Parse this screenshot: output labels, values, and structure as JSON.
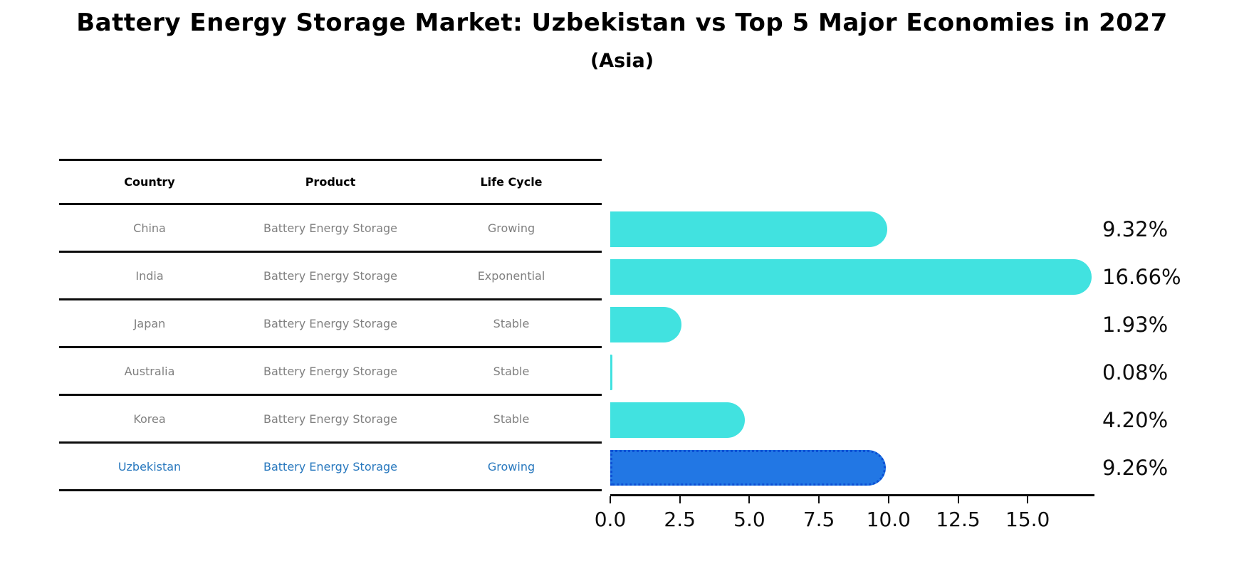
{
  "title": "Battery Energy Storage Market: Uzbekistan vs Top 5 Major Economies in 2027",
  "subtitle": "(Asia)",
  "table": {
    "headers": [
      "Country",
      "Product",
      "Life Cycle"
    ],
    "rows": [
      {
        "country": "China",
        "product": "Battery Energy Storage",
        "life_cycle": "Growing",
        "highlight": false
      },
      {
        "country": "India",
        "product": "Battery Energy Storage",
        "life_cycle": "Exponential",
        "highlight": false
      },
      {
        "country": "Japan",
        "product": "Battery Energy Storage",
        "life_cycle": "Stable",
        "highlight": false
      },
      {
        "country": "Australia",
        "product": "Battery Energy Storage",
        "life_cycle": "Stable",
        "highlight": false
      },
      {
        "country": "Korea",
        "product": "Battery Energy Storage",
        "life_cycle": "Stable",
        "highlight": false
      },
      {
        "country": "Uzbekistan",
        "product": "Battery Energy Storage",
        "life_cycle": "Growing",
        "highlight": true
      }
    ]
  },
  "chart_data": {
    "type": "bar",
    "orientation": "horizontal",
    "title": "Battery Energy Storage Market: Uzbekistan vs Top 5 Major Economies in 2027",
    "subtitle": "(Asia)",
    "categories": [
      "China",
      "India",
      "Japan",
      "Australia",
      "Korea",
      "Uzbekistan"
    ],
    "values": [
      9.32,
      16.66,
      1.93,
      0.08,
      4.2,
      9.26
    ],
    "value_labels": [
      "9.32%",
      "16.66%",
      "1.93%",
      "0.08%",
      "4.20%",
      "9.26%"
    ],
    "x_ticks": [
      0.0,
      2.5,
      5.0,
      7.5,
      10.0,
      12.5,
      15.0
    ],
    "x_tick_labels": [
      "0.0",
      "2.5",
      "5.0",
      "7.5",
      "10.0",
      "12.5",
      "15.0"
    ],
    "xlim": [
      0,
      17.4
    ],
    "grid": false,
    "legend": "none",
    "highlight_index": 5,
    "bar_color": "#41e2e0",
    "highlight_bar_color": "#2277e4",
    "highlight_border_color": "#0c4fd4",
    "highlight_text_color": "#2878be",
    "row_text_color": "#808080"
  }
}
